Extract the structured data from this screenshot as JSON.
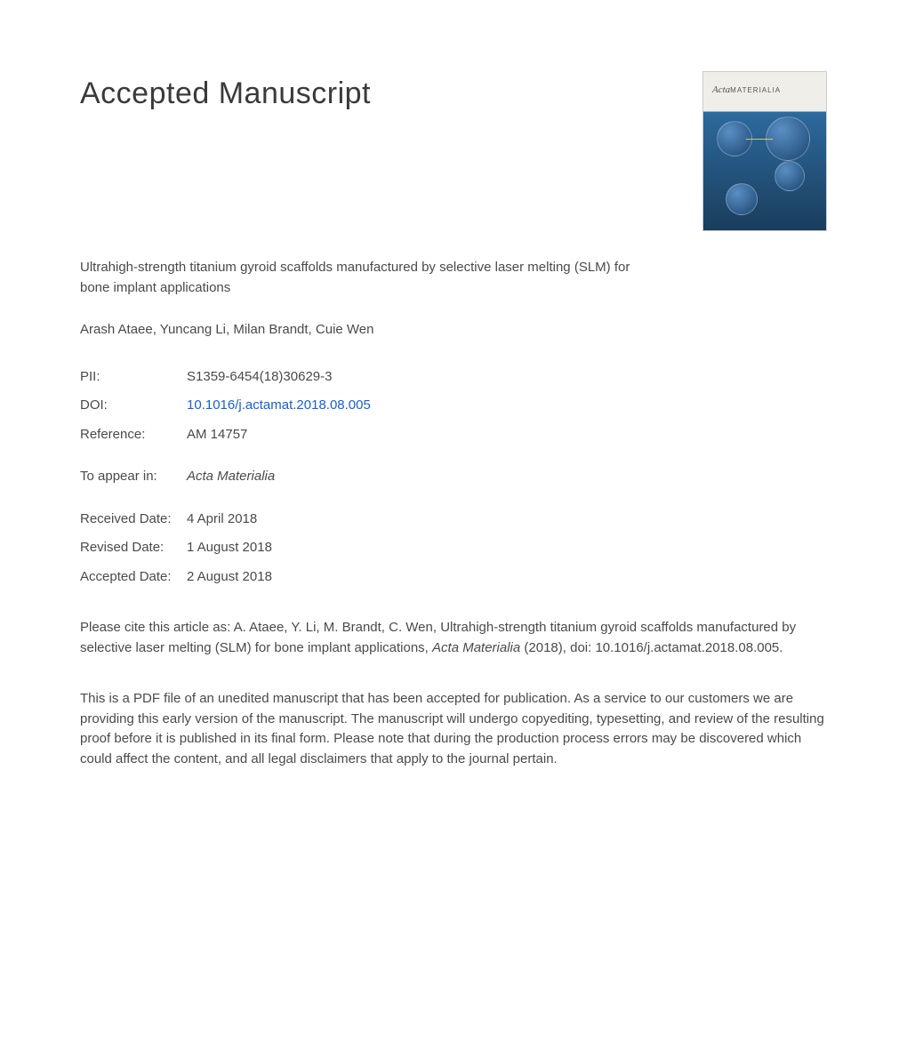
{
  "heading": "Accepted Manuscript",
  "cover": {
    "journal_acta": "Acta",
    "journal_materialia": "MATERIALIA",
    "sphere_labels": [
      "",
      "",
      "",
      ""
    ]
  },
  "article": {
    "title": "Ultrahigh-strength titanium gyroid scaffolds manufactured by selective laser melting (SLM) for bone implant applications",
    "authors": "Arash Ataee, Yuncang Li, Milan Brandt, Cuie Wen"
  },
  "meta": {
    "pii_label": "PII:",
    "pii_value": "S1359-6454(18)30629-3",
    "doi_label": "DOI:",
    "doi_value": "10.1016/j.actamat.2018.08.005",
    "ref_label": "Reference:",
    "ref_value": "AM 14757",
    "appear_label": "To appear in:",
    "appear_value": "Acta Materialia",
    "received_label": "Received Date:",
    "received_value": "4 April 2018",
    "revised_label": "Revised Date:",
    "revised_value": "1 August 2018",
    "accepted_label": "Accepted Date:",
    "accepted_value": "2 August 2018"
  },
  "citation": {
    "prefix": "Please cite this article as: A. Ataee, Y. Li, M. Brandt, C. Wen, Ultrahigh-strength titanium gyroid scaffolds manufactured by selective laser melting (SLM) for bone implant applications, ",
    "journal": "Acta Materialia",
    "suffix": " (2018), doi: 10.1016/j.actamat.2018.08.005."
  },
  "disclaimer": "This is a PDF file of an unedited manuscript that has been accepted for publication. As a service to our customers we are providing this early version of the manuscript. The manuscript will undergo copyediting, typesetting, and review of the resulting proof before it is published in its final form. Please note that during the production process errors may be discovered which could affect the content, and all legal disclaimers that apply to the journal pertain."
}
